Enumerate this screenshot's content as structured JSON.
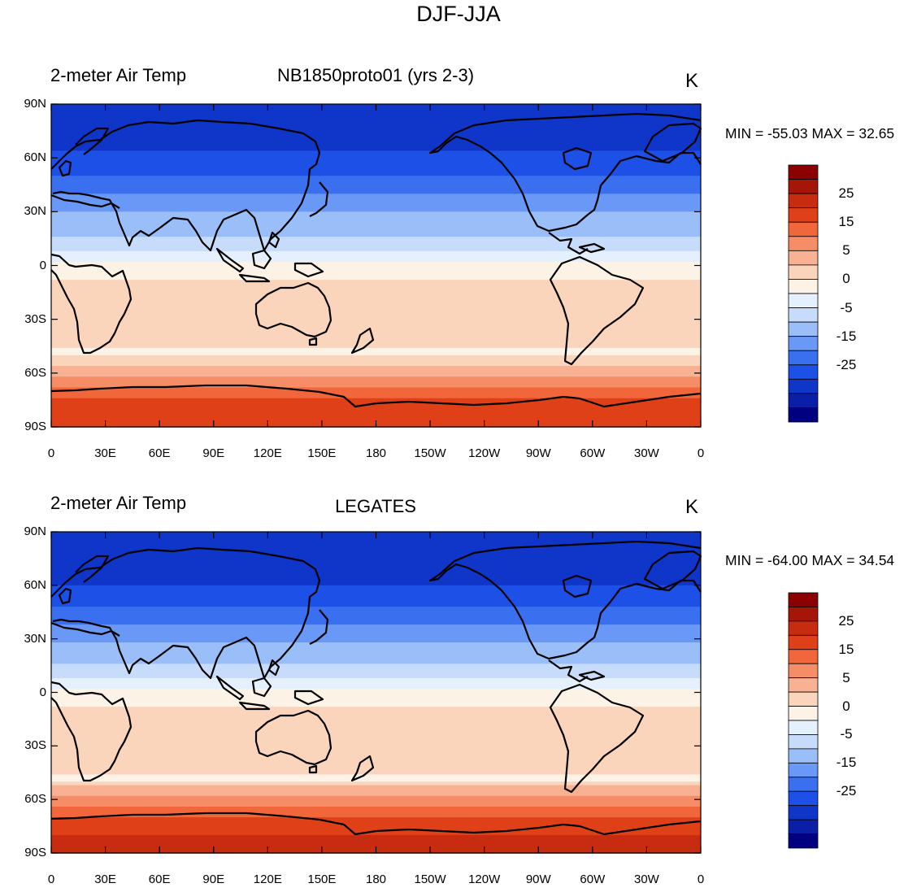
{
  "figure": {
    "title": "DJF-JJA"
  },
  "palette": [
    "#000080",
    "#0a1fa8",
    "#0f36c9",
    "#1c50e6",
    "#3a70f0",
    "#6a98f6",
    "#9abef8",
    "#c6dcfa",
    "#e4f0fd",
    "#fdf2e6",
    "#fbd4bc",
    "#f8b293",
    "#f58d66",
    "#f2663b",
    "#e04018",
    "#c82c10",
    "#a51508",
    "#8b0000"
  ],
  "colorbar_labels": [
    "25",
    "15",
    "5",
    "0",
    "-5",
    "-15",
    "-25"
  ],
  "colorbar_label_levels": [
    25,
    15,
    5,
    0,
    -5,
    -15,
    -25
  ],
  "panels": [
    {
      "left_title": "2-meter Air Temp",
      "center_title": "NB1850proto01 (yrs 2-3)",
      "units": "K",
      "stats": "MIN = -55.03 MAX =  32.65",
      "lat_ticks": [
        "90N",
        "60N",
        "30N",
        "0",
        "30S",
        "60S",
        "90S"
      ],
      "lon_ticks": [
        "0",
        "30E",
        "60E",
        "90E",
        "120E",
        "150E",
        "180",
        "150W",
        "120W",
        "90W",
        "60W",
        "30W",
        "0"
      ]
    },
    {
      "left_title": "2-meter Air Temp",
      "center_title": "LEGATES",
      "units": "K",
      "stats": "MIN = -64.00 MAX =  34.54",
      "lat_ticks": [
        "90N",
        "60N",
        "30N",
        "0",
        "30S",
        "60S",
        "90S"
      ],
      "lon_ticks": [
        "0",
        "30E",
        "60E",
        "90E",
        "120E",
        "150E",
        "180",
        "150W",
        "120W",
        "90W",
        "60W",
        "30W",
        "0"
      ]
    }
  ],
  "chart_data": {
    "type": "heatmap",
    "title": "DJF-JJA",
    "variable": "2-meter Air Temp",
    "units": "K",
    "x_range": [
      0,
      360
    ],
    "y_range": [
      -90,
      90
    ],
    "zonal_profile_lat": [
      90,
      80,
      70,
      60,
      50,
      40,
      30,
      20,
      10,
      0,
      -10,
      -20,
      -30,
      -40,
      -50,
      -60,
      -70,
      -80,
      -90
    ],
    "series": [
      {
        "name": "NB1850proto01 (yrs 2-3)",
        "min": -55.03,
        "max": 32.65,
        "zonal_profile": [
          -27,
          -28,
          -27,
          -24,
          -20,
          -15,
          -10,
          -6,
          -3,
          1,
          3,
          4,
          5,
          3,
          2,
          7,
          18,
          22,
          24
        ]
      },
      {
        "name": "LEGATES",
        "min": -64.0,
        "max": 34.54,
        "zonal_profile": [
          -28,
          -30,
          -28,
          -25,
          -21,
          -16,
          -11,
          -6,
          -3,
          1,
          3,
          4,
          5,
          3,
          2,
          12,
          20,
          25,
          27
        ]
      }
    ],
    "contour_levels": [
      -35,
      -30,
      -25,
      -20,
      -15,
      -10,
      -5,
      -2.5,
      0,
      2.5,
      5,
      10,
      15,
      20,
      25,
      30,
      35
    ]
  }
}
